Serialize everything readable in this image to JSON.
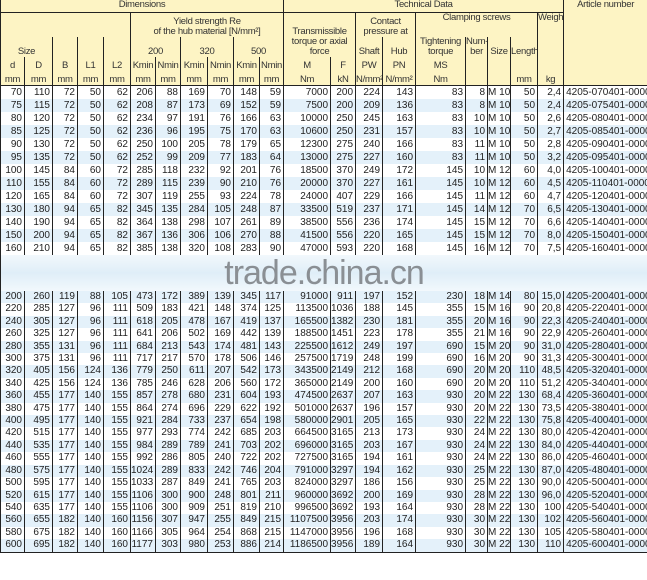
{
  "header": {
    "dimensions": "Dimensions",
    "technical_data": "Technical Data",
    "article_number": "Article number",
    "size": "Size",
    "yield_line1": "Yield strength Re",
    "yield_line2": "of the hub material [N/mm²]",
    "grades": [
      "200",
      "320",
      "500"
    ],
    "transmissible": "Transmissible torque or axial force",
    "contact_pressure": "Contact pressure at",
    "shaft": "Shaft",
    "hub": "Hub",
    "clamping_screws": "Clamping screws",
    "tightening_torque": "Tightening torque",
    "number": "Num-ber",
    "screw_size": "Size",
    "length": "Length",
    "weight": "Weight",
    "symbols": [
      "d",
      "D",
      "B",
      "L1",
      "L2",
      "Kmin",
      "Nmin",
      "Kmin",
      "Nmin",
      "Kmin",
      "Nmin",
      "M",
      "F",
      "PW",
      "PN",
      "MS",
      "",
      "",
      "",
      ""
    ],
    "units": [
      "mm",
      "mm",
      "mm",
      "mm",
      "mm",
      "mm",
      "mm",
      "mm",
      "mm",
      "mm",
      "mm",
      "Nm",
      "kN",
      "N/mm²",
      "N/mm²",
      "Nm",
      "",
      "",
      "mm",
      "kg"
    ]
  },
  "watermark": "trade.china.cn",
  "table": {
    "rows": [
      [
        "70",
        "110",
        "72",
        "50",
        "62",
        "206",
        "88",
        "169",
        "70",
        "148",
        "59",
        "7000",
        "200",
        "224",
        "143",
        "83",
        "8",
        "M 10",
        "50",
        "2,4",
        "4205-070401-000000"
      ],
      [
        "75",
        "115",
        "72",
        "50",
        "62",
        "208",
        "87",
        "173",
        "69",
        "152",
        "59",
        "7500",
        "200",
        "209",
        "136",
        "83",
        "8",
        "M 10",
        "50",
        "2,4",
        "4205-075401-000000"
      ],
      [
        "80",
        "120",
        "72",
        "50",
        "62",
        "234",
        "97",
        "191",
        "76",
        "166",
        "63",
        "10000",
        "250",
        "245",
        "163",
        "83",
        "10",
        "M 10",
        "50",
        "2,6",
        "4205-080401-000000"
      ],
      [
        "85",
        "125",
        "72",
        "50",
        "62",
        "236",
        "96",
        "195",
        "75",
        "170",
        "63",
        "10600",
        "250",
        "231",
        "157",
        "83",
        "10",
        "M 10",
        "50",
        "2,7",
        "4205-085401-000000"
      ],
      [
        "90",
        "130",
        "72",
        "50",
        "62",
        "250",
        "100",
        "205",
        "78",
        "179",
        "65",
        "12300",
        "275",
        "240",
        "166",
        "83",
        "11",
        "M 10",
        "50",
        "2,8",
        "4205-090401-000000"
      ],
      [
        "95",
        "135",
        "72",
        "50",
        "62",
        "252",
        "99",
        "209",
        "77",
        "183",
        "64",
        "13000",
        "275",
        "227",
        "160",
        "83",
        "11",
        "M 10",
        "50",
        "3,2",
        "4205-095401-000000"
      ],
      [
        "100",
        "145",
        "84",
        "60",
        "72",
        "285",
        "118",
        "232",
        "92",
        "201",
        "76",
        "18500",
        "370",
        "249",
        "172",
        "145",
        "10",
        "M 12",
        "60",
        "4,0",
        "4205-100401-000000"
      ],
      [
        "110",
        "155",
        "84",
        "60",
        "72",
        "289",
        "115",
        "239",
        "90",
        "210",
        "76",
        "20000",
        "370",
        "227",
        "161",
        "145",
        "10",
        "M 12",
        "60",
        "4,5",
        "4205-110401-000000"
      ],
      [
        "120",
        "165",
        "84",
        "60",
        "72",
        "307",
        "119",
        "255",
        "93",
        "224",
        "78",
        "24000",
        "407",
        "229",
        "166",
        "145",
        "11",
        "M 12",
        "60",
        "4,7",
        "4205-120401-000000"
      ],
      [
        "130",
        "180",
        "94",
        "65",
        "82",
        "345",
        "135",
        "284",
        "105",
        "248",
        "87",
        "33500",
        "519",
        "237",
        "171",
        "145",
        "14",
        "M 12",
        "70",
        "6,5",
        "4205-130401-000000"
      ],
      [
        "140",
        "190",
        "94",
        "65",
        "82",
        "364",
        "138",
        "298",
        "107",
        "261",
        "89",
        "38500",
        "556",
        "236",
        "174",
        "145",
        "15",
        "M 12",
        "70",
        "6,6",
        "4205-140401-000000"
      ],
      [
        "150",
        "200",
        "94",
        "65",
        "82",
        "367",
        "136",
        "306",
        "106",
        "270",
        "88",
        "41500",
        "556",
        "220",
        "165",
        "145",
        "15",
        "M 12",
        "70",
        "8,0",
        "4205-150401-000000"
      ],
      [
        "160",
        "210",
        "94",
        "65",
        "82",
        "385",
        "138",
        "320",
        "108",
        "283",
        "90",
        "47000",
        "593",
        "220",
        "168",
        "145",
        "16",
        "M 12",
        "70",
        "7,5",
        "4205-160401-000000"
      ],
      [
        "200",
        "260",
        "119",
        "88",
        "105",
        "473",
        "172",
        "389",
        "139",
        "345",
        "117",
        "91000",
        "911",
        "197",
        "152",
        "230",
        "18",
        "M 14",
        "80",
        "15,0",
        "4205-200401-000000"
      ],
      [
        "220",
        "285",
        "127",
        "96",
        "111",
        "509",
        "183",
        "421",
        "148",
        "374",
        "125",
        "113500",
        "1036",
        "188",
        "145",
        "355",
        "15",
        "M 16",
        "90",
        "20,8",
        "4205-220401-000000"
      ],
      [
        "240",
        "305",
        "127",
        "96",
        "111",
        "618",
        "205",
        "478",
        "167",
        "419",
        "137",
        "165500",
        "1382",
        "230",
        "181",
        "355",
        "20",
        "M 16",
        "90",
        "22,3",
        "4205-240401-000000"
      ],
      [
        "260",
        "325",
        "127",
        "96",
        "111",
        "641",
        "206",
        "502",
        "169",
        "442",
        "139",
        "188500",
        "1451",
        "223",
        "178",
        "355",
        "21",
        "M 16",
        "90",
        "22,9",
        "4205-260401-000000"
      ],
      [
        "280",
        "355",
        "131",
        "96",
        "111",
        "684",
        "213",
        "543",
        "174",
        "481",
        "143",
        "225500",
        "1612",
        "249",
        "197",
        "690",
        "15",
        "M 20",
        "90",
        "31,0",
        "4205-280401-000000"
      ],
      [
        "300",
        "375",
        "131",
        "96",
        "111",
        "717",
        "217",
        "570",
        "178",
        "506",
        "146",
        "257500",
        "1719",
        "248",
        "199",
        "690",
        "16",
        "M 20",
        "90",
        "31,3",
        "4205-300401-000000"
      ],
      [
        "320",
        "405",
        "156",
        "124",
        "136",
        "779",
        "250",
        "611",
        "207",
        "542",
        "173",
        "343500",
        "2149",
        "212",
        "168",
        "690",
        "20",
        "M 20",
        "110",
        "48,5",
        "4205-320401-000000"
      ],
      [
        "340",
        "425",
        "156",
        "124",
        "136",
        "785",
        "246",
        "628",
        "206",
        "560",
        "172",
        "365000",
        "2149",
        "200",
        "160",
        "690",
        "20",
        "M 20",
        "110",
        "51,2",
        "4205-340401-000000"
      ],
      [
        "360",
        "455",
        "177",
        "140",
        "155",
        "857",
        "278",
        "680",
        "231",
        "604",
        "193",
        "474500",
        "2637",
        "207",
        "163",
        "930",
        "20",
        "M 22",
        "130",
        "68,4",
        "4205-360401-000000"
      ],
      [
        "380",
        "475",
        "177",
        "140",
        "155",
        "864",
        "274",
        "696",
        "229",
        "622",
        "192",
        "501000",
        "2637",
        "196",
        "157",
        "930",
        "20",
        "M 22",
        "130",
        "73,5",
        "4205-380401-000000"
      ],
      [
        "400",
        "495",
        "177",
        "140",
        "155",
        "921",
        "284",
        "733",
        "237",
        "654",
        "198",
        "580000",
        "2901",
        "205",
        "165",
        "930",
        "22",
        "M 22",
        "130",
        "75,8",
        "4205-400401-000000"
      ],
      [
        "420",
        "515",
        "177",
        "140",
        "155",
        "977",
        "293",
        "774",
        "242",
        "685",
        "203",
        "664500",
        "3165",
        "213",
        "173",
        "930",
        "24",
        "M 22",
        "130",
        "80,0",
        "4205-420401-000000"
      ],
      [
        "440",
        "535",
        "177",
        "140",
        "155",
        "984",
        "289",
        "789",
        "241",
        "703",
        "202",
        "696000",
        "3165",
        "203",
        "167",
        "930",
        "24",
        "M 22",
        "130",
        "84,0",
        "4205-440401-000000"
      ],
      [
        "460",
        "555",
        "177",
        "140",
        "155",
        "992",
        "286",
        "805",
        "240",
        "722",
        "202",
        "727500",
        "3165",
        "194",
        "161",
        "930",
        "24",
        "M 22",
        "130",
        "86,0",
        "4205-460401-000000"
      ],
      [
        "480",
        "575",
        "177",
        "140",
        "155",
        "1024",
        "289",
        "833",
        "242",
        "746",
        "204",
        "791000",
        "3297",
        "194",
        "162",
        "930",
        "25",
        "M 22",
        "130",
        "87,0",
        "4205-480401-000000"
      ],
      [
        "500",
        "595",
        "177",
        "140",
        "155",
        "1033",
        "287",
        "849",
        "241",
        "765",
        "203",
        "824000",
        "3297",
        "186",
        "156",
        "930",
        "25",
        "M 22",
        "130",
        "90,0",
        "4205-500401-000000"
      ],
      [
        "520",
        "615",
        "177",
        "140",
        "155",
        "1106",
        "300",
        "900",
        "248",
        "801",
        "211",
        "960000",
        "3692",
        "200",
        "169",
        "930",
        "28",
        "M 22",
        "130",
        "96,0",
        "4205-520401-000000"
      ],
      [
        "540",
        "635",
        "177",
        "140",
        "155",
        "1106",
        "300",
        "909",
        "251",
        "819",
        "210",
        "996500",
        "3692",
        "193",
        "164",
        "930",
        "28",
        "M 22",
        "130",
        "100",
        "4205-540401-000000"
      ],
      [
        "560",
        "655",
        "182",
        "140",
        "160",
        "1156",
        "307",
        "947",
        "255",
        "849",
        "215",
        "1107500",
        "3956",
        "203",
        "174",
        "930",
        "30",
        "M 22",
        "130",
        "102",
        "4205-560401-000000"
      ],
      [
        "580",
        "675",
        "182",
        "140",
        "160",
        "1166",
        "305",
        "964",
        "254",
        "868",
        "215",
        "1147000",
        "3956",
        "196",
        "168",
        "930",
        "30",
        "M 22",
        "130",
        "105",
        "4205-580401-000000"
      ],
      [
        "600",
        "695",
        "182",
        "140",
        "160",
        "1177",
        "303",
        "980",
        "253",
        "886",
        "214",
        "1186500",
        "3956",
        "189",
        "164",
        "930",
        "30",
        "M 22",
        "130",
        "110",
        "4205-600401-000000"
      ]
    ]
  },
  "colors": {
    "header_bg": "#fdf4c4",
    "stripe": "#e4f1fa",
    "border": "#222222"
  }
}
